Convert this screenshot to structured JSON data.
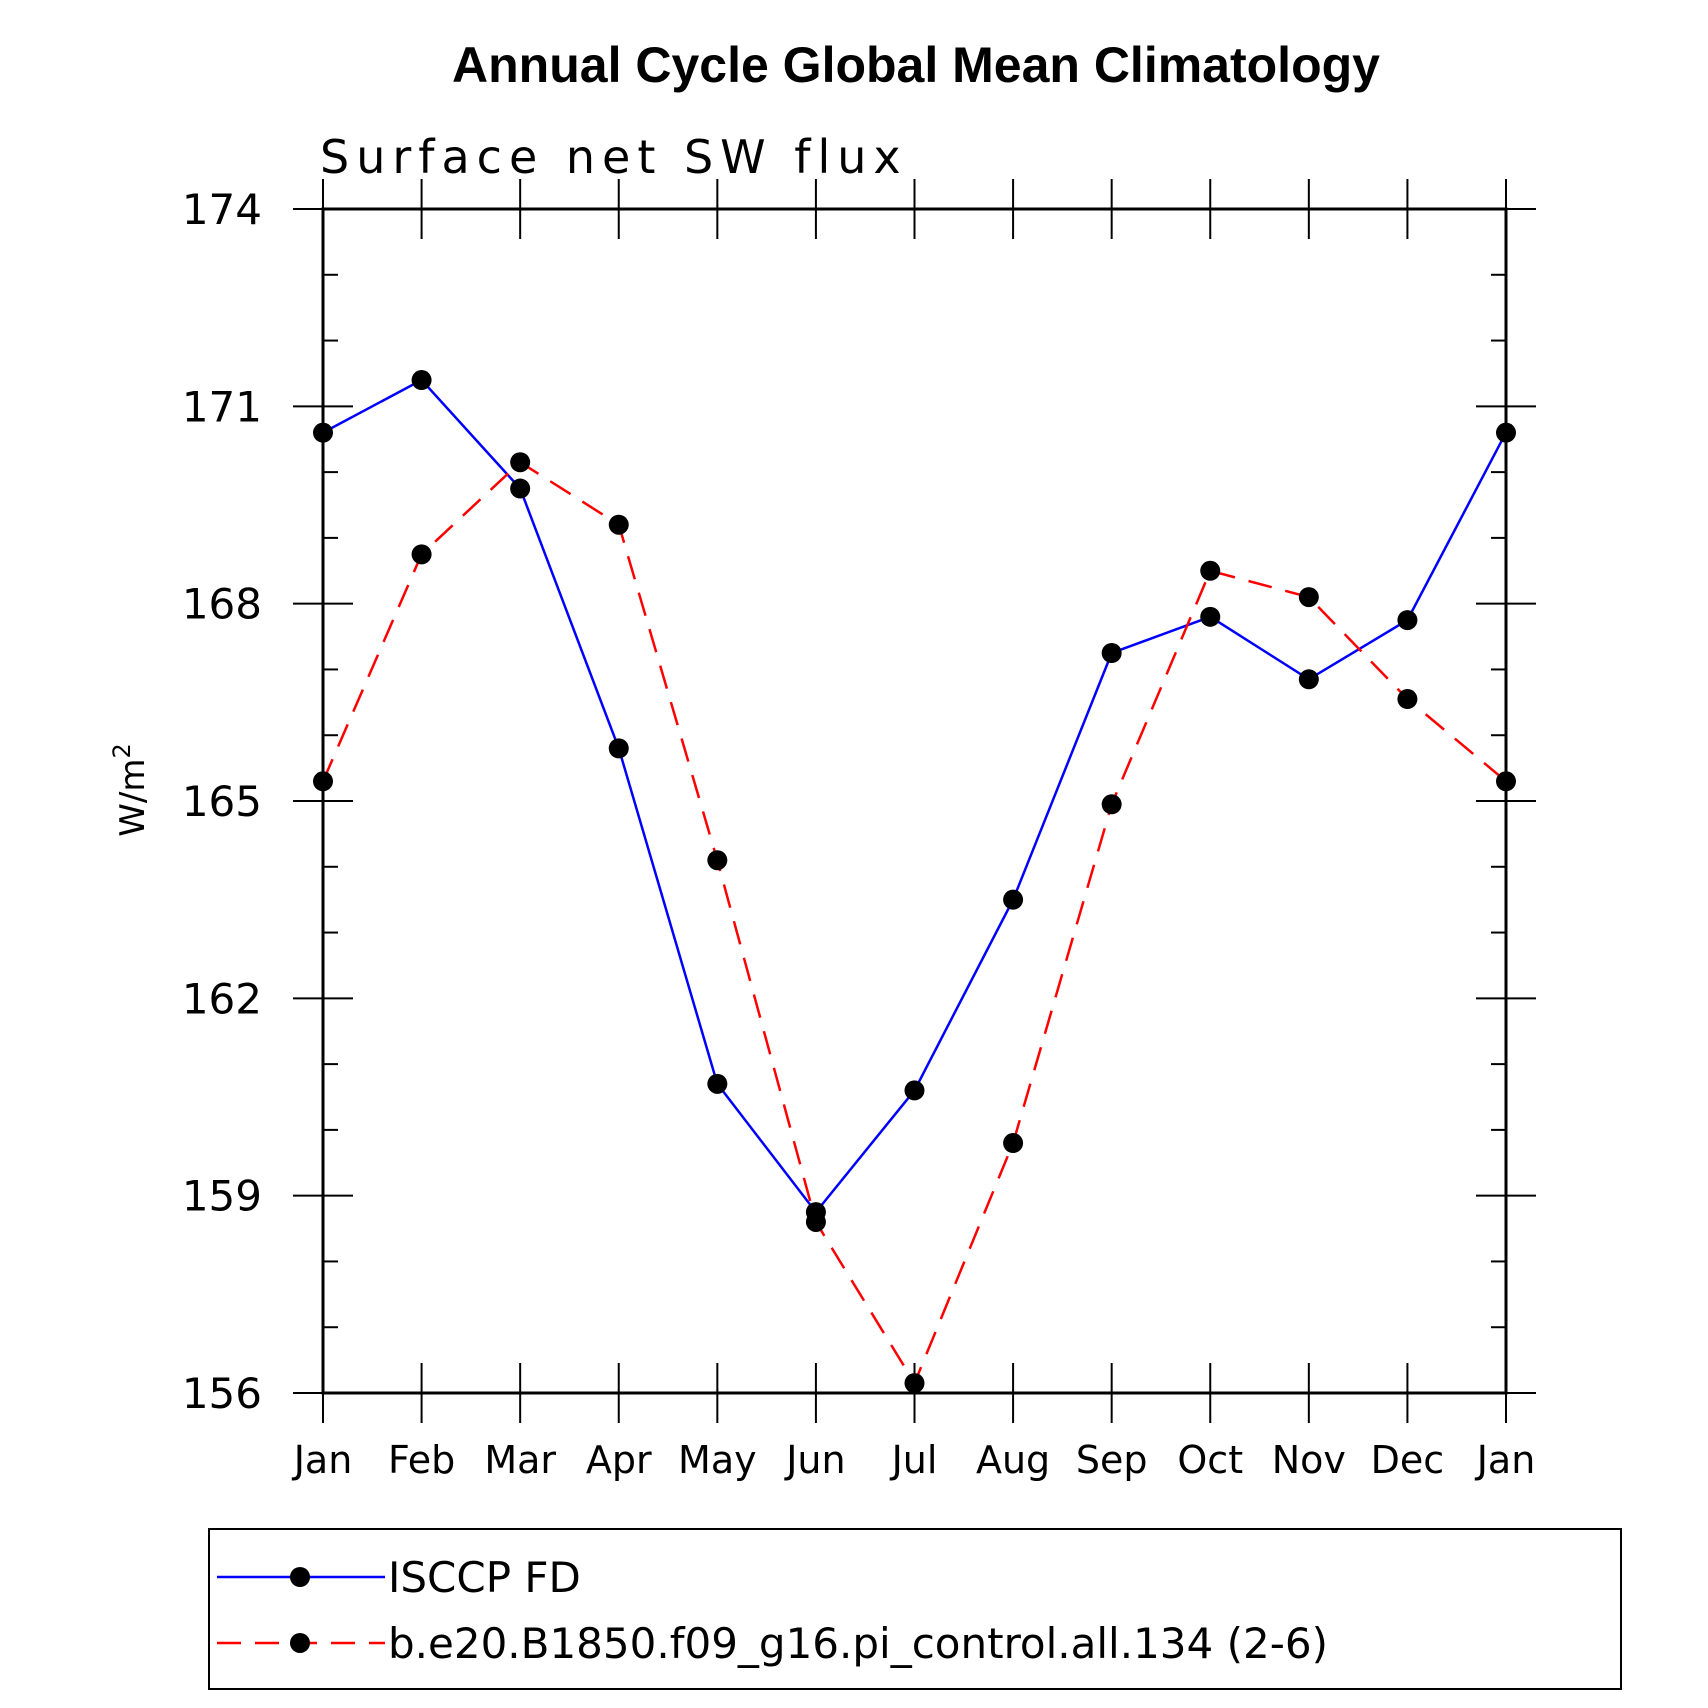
{
  "chart_data": {
    "type": "line",
    "title": "Annual Cycle Global Mean Climatology",
    "subtitle": "Surface net SW flux",
    "ylabel": "W/m",
    "ylabel_superscript": "2",
    "xlabel": "",
    "ylim": [
      156,
      174
    ],
    "yticks": [
      "156",
      "159",
      "162",
      "165",
      "168",
      "171",
      "174"
    ],
    "categories": [
      "Jan",
      "Feb",
      "Mar",
      "Apr",
      "May",
      "Jun",
      "Jul",
      "Aug",
      "Sep",
      "Oct",
      "Nov",
      "Dec",
      "Jan"
    ],
    "grid": false,
    "legend_position": "bottom",
    "series": [
      {
        "name": "ISCCP FD",
        "color": "#0000ff",
        "dash": "solid",
        "values": [
          170.6,
          171.4,
          169.75,
          165.8,
          160.7,
          158.75,
          160.6,
          163.5,
          167.25,
          167.8,
          166.85,
          167.75,
          170.6
        ]
      },
      {
        "name": "b.e20.B1850.f09_g16.pi_control.all.134 (2-6)",
        "color": "#ff0000",
        "dash": "dashed",
        "values": [
          165.3,
          168.75,
          170.15,
          169.2,
          164.1,
          158.6,
          156.15,
          159.8,
          164.95,
          168.5,
          168.1,
          166.55,
          165.3
        ]
      }
    ]
  }
}
